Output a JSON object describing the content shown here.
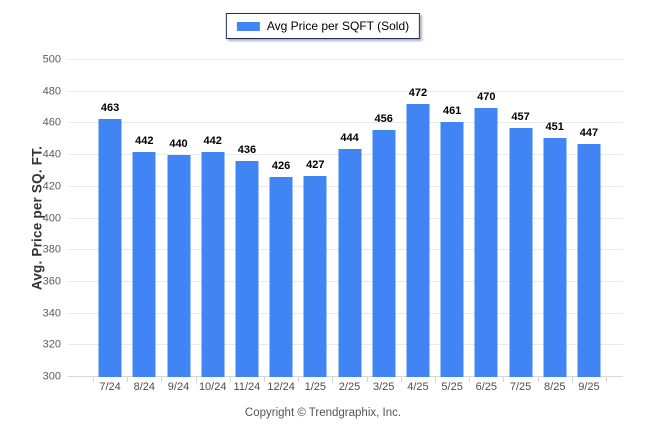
{
  "legend": {
    "label": "Avg Price per SQFT (Sold)",
    "swatch_color": "#4184f3",
    "swatch_icon": "legend-swatch"
  },
  "chart_data": {
    "type": "bar",
    "title": "",
    "categories": [
      "7/24",
      "8/24",
      "9/24",
      "10/24",
      "11/24",
      "12/24",
      "1/25",
      "2/25",
      "3/25",
      "4/25",
      "5/25",
      "6/25",
      "7/25",
      "8/25",
      "9/25"
    ],
    "values": [
      463,
      442,
      440,
      442,
      436,
      426,
      427,
      444,
      456,
      472,
      461,
      470,
      457,
      451,
      447
    ],
    "series_name": "Avg Price per SQFT (Sold)",
    "xlabel": "",
    "ylabel": "Avg. Price per SQ. FT.",
    "ylim": [
      300,
      500
    ],
    "ytick_step": 20,
    "grid": true,
    "legend_position": "top-center",
    "bar_color": "#4184f3",
    "value_labels_shown": true,
    "value_label_color": "#000000",
    "gridline_color": "#eaeaea",
    "baseline_color": "#d8d8d8",
    "tick_label_color": "#5c5c5c"
  },
  "footer": {
    "copyright": "Copyright © Trendgraphix, Inc."
  }
}
